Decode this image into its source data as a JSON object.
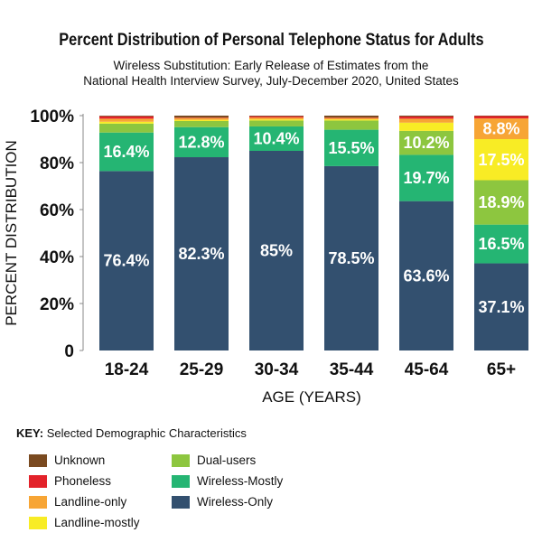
{
  "chart_data": {
    "type": "bar",
    "stacked": true,
    "title": "Percent Distribution of Personal Telephone Status for Adults",
    "subtitle_lines": [
      "Wireless Substitution: Early Release of Estimates from the",
      "National Health Interview Survey, July-December 2020, United States"
    ],
    "xlabel": "AGE (YEARS)",
    "ylabel": "PERCENT DISTRIBUTION",
    "ylim": [
      0,
      100
    ],
    "yticks": [
      "0",
      "20%",
      "40%",
      "60%",
      "80%",
      "100%"
    ],
    "categories": [
      "18-24",
      "25-29",
      "30-34",
      "35-44",
      "45-64",
      "65+"
    ],
    "series": [
      {
        "name": "Wireless-Only",
        "color": "#33506f",
        "values": [
          76.4,
          82.3,
          85,
          78.5,
          63.6,
          37.1
        ],
        "labels": [
          "76.4%",
          "82.3%",
          "85%",
          "78.5%",
          "63.6%",
          "37.1%"
        ]
      },
      {
        "name": "Wireless-Mostly",
        "color": "#25b573",
        "values": [
          16.4,
          12.8,
          10.4,
          15.5,
          19.7,
          16.5
        ],
        "labels": [
          "16.4%",
          "12.8%",
          "10.4%",
          "15.5%",
          "19.7%",
          "16.5%"
        ]
      },
      {
        "name": "Dual-users",
        "color": "#8dc63f",
        "values": [
          3.8,
          2.6,
          2.5,
          3.9,
          10.2,
          18.9
        ],
        "labels": [
          "",
          "",
          "",
          "",
          "10.2%",
          "18.9%"
        ]
      },
      {
        "name": "Landline-mostly",
        "color": "#f8ec25",
        "values": [
          0.8,
          0.5,
          0.5,
          0.5,
          3.5,
          17.5
        ],
        "labels": [
          "",
          "",
          "",
          "",
          "",
          "17.5%"
        ]
      },
      {
        "name": "Landline-only",
        "color": "#f7a535",
        "values": [
          1.3,
          0.8,
          0.8,
          0.6,
          1.7,
          8.8
        ],
        "labels": [
          "",
          "",
          "",
          "",
          "",
          "8.8%"
        ]
      },
      {
        "name": "Phoneless",
        "color": "#e3222a",
        "values": [
          1.0,
          0.2,
          0.5,
          0.2,
          0.9,
          1.0
        ],
        "labels": [
          "",
          "",
          "",
          "",
          "",
          ""
        ]
      },
      {
        "name": "Unknown",
        "color": "#7a4a20",
        "values": [
          0.3,
          0.8,
          0.3,
          0.8,
          0.4,
          0.2
        ],
        "labels": [
          "",
          "",
          "",
          "",
          "",
          ""
        ]
      }
    ],
    "legend": {
      "heading": "KEY:",
      "heading_rest": "Selected Demographic Characteristics",
      "order": [
        "Unknown",
        "Phoneless",
        "Landline-only",
        "Landline-mostly",
        "Dual-users",
        "Wireless-Mostly",
        "Wireless-Only"
      ],
      "placement": "bottom-left"
    }
  }
}
